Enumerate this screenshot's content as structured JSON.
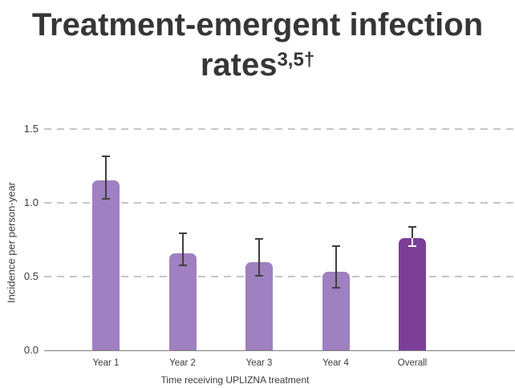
{
  "page": {
    "background": "#ffffff"
  },
  "title": {
    "line1": "Treatment-emergent infection",
    "line2_base": "rates",
    "superscript": "3,5†",
    "color": "#363636"
  },
  "chart_data": {
    "type": "bar",
    "title": "Treatment-emergent infection rates",
    "title_superscript": "3,5†",
    "categories": [
      "Year 1",
      "Year 2",
      "Year 3",
      "Year 4",
      "Overall"
    ],
    "series": [
      {
        "name": "Incidence per person-year",
        "values": [
          1.15,
          0.66,
          0.6,
          0.53,
          0.76
        ]
      }
    ],
    "error_low": [
      1.02,
      0.57,
      0.5,
      0.42,
      0.7
    ],
    "error_high": [
      1.32,
      0.8,
      0.76,
      0.71,
      0.84
    ],
    "bar_colors": [
      "#9f80c0",
      "#9f80c0",
      "#9f80c0",
      "#9f80c0",
      "#7b3f98"
    ],
    "whisker_inner_colors": [
      null,
      null,
      null,
      null,
      "#ffffff"
    ],
    "xlabel": "Time receiving UPLIZNA treatment",
    "ylabel": "Incidence per person-year",
    "ytick_labels": [
      "0.0",
      "0.5",
      "1.0",
      "1.5"
    ],
    "ytick_values": [
      0.0,
      0.5,
      1.0,
      1.5
    ],
    "gridline_values": [
      0.5,
      1.0,
      1.5
    ],
    "ylim": [
      0,
      1.6
    ],
    "grid": "horizontal-dashed",
    "legend": "none",
    "colors": {
      "error_bar": "#3f3f3f",
      "gridline": "#c6c6c6",
      "axis_line": "#7d7d7d",
      "tick_text": "#3b3b3b"
    }
  }
}
